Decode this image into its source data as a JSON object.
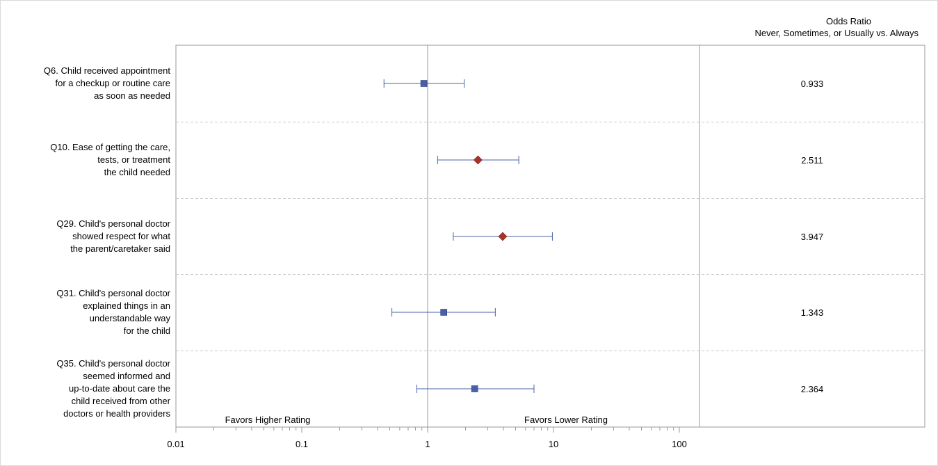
{
  "chart_data": {
    "type": "forest",
    "right_column_title_lines": [
      "Odds Ratio",
      "Never, Sometimes, or Usually vs. Always"
    ],
    "x_axis": {
      "scale": "log",
      "range": [
        0.01,
        200
      ],
      "ticks": [
        0.01,
        0.1,
        1,
        10,
        100
      ],
      "tick_labels": [
        "0.01",
        "0.1",
        "1",
        "10",
        "100"
      ],
      "reference_line": 1
    },
    "annotations": {
      "left": "Favors Higher Rating",
      "right": "Favors Lower Rating"
    },
    "rows": [
      {
        "label_lines": [
          "Q6. Child received appointment",
          "for a checkup or routine care",
          "as soon as needed"
        ],
        "odds_ratio": 0.933,
        "ci_lower": 0.45,
        "ci_upper": 1.95,
        "odds_ratio_text": "0.933",
        "marker": "square",
        "color": "#4a5fa8"
      },
      {
        "label_lines": [
          "Q10. Ease of getting the care,",
          "tests, or treatment",
          "the child needed"
        ],
        "odds_ratio": 2.511,
        "ci_lower": 1.2,
        "ci_upper": 5.3,
        "odds_ratio_text": "2.511",
        "marker": "diamond",
        "color": "#a9322b"
      },
      {
        "label_lines": [
          "Q29. Child's personal doctor",
          "showed respect for what",
          "the parent/caretaker said"
        ],
        "odds_ratio": 3.947,
        "ci_lower": 1.6,
        "ci_upper": 9.8,
        "odds_ratio_text": "3.947",
        "marker": "diamond",
        "color": "#a9322b"
      },
      {
        "label_lines": [
          "Q31. Child's personal doctor",
          "explained things in an",
          "understandable way",
          "for the child"
        ],
        "odds_ratio": 1.343,
        "ci_lower": 0.52,
        "ci_upper": 3.45,
        "odds_ratio_text": "1.343",
        "marker": "square",
        "color": "#4a5fa8"
      },
      {
        "label_lines": [
          "Q35. Child's personal doctor",
          "seemed informed and",
          "up-to-date about care the",
          "child received from other",
          "doctors or health providers"
        ],
        "odds_ratio": 2.364,
        "ci_lower": 0.82,
        "ci_upper": 7.0,
        "odds_ratio_text": "2.364",
        "marker": "square",
        "color": "#4a5fa8"
      }
    ],
    "grid": false,
    "legend": "none"
  }
}
